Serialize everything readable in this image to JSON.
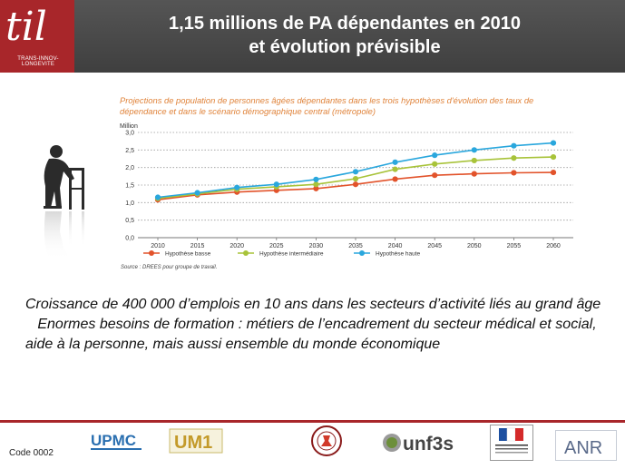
{
  "logo": {
    "text": "til",
    "subtitle": "TRANS-INNOV-LONGEVITE"
  },
  "slide": {
    "title_line1": "1,15 millions de PA dépendantes en 2010",
    "title_line2": "et évolution prévisible",
    "body_line1": "Croissance de 400 000 d’emplois en 10 ans dans les secteurs d’activité liés au grand âge",
    "body_line2": "Enormes besoins de formation : métiers de l’encadrement du secteur médical et social, aide à la personne, mais aussi ensemble du monde économique",
    "bullet_glyph": "",
    "code": "Code 0002"
  },
  "partner_logos": [
    "UPMC",
    "UM1",
    "unf3s",
    "ANR"
  ],
  "colors": {
    "brand": "#a8262a",
    "basse": "#e2532b",
    "intermediaire": "#a8c33a",
    "haute": "#2aa7dd",
    "title_orange": "#e0833a"
  },
  "chart_data": {
    "type": "line",
    "title": "Projections de population de personnes âgées dépendantes dans les trois hypothèses d'évolution des taux de dépendance et dans le scénario démographique central (métropole)",
    "ylabel": "Million",
    "source": "Source : DREES pour groupe de travail.",
    "x": [
      2010,
      2015,
      2020,
      2025,
      2030,
      2035,
      2040,
      2045,
      2050,
      2055,
      2060
    ],
    "x_tick_labels": [
      "2010",
      "2015",
      "2020",
      "2025",
      "2030",
      "2035",
      "2040",
      "2045",
      "2050",
      "2055",
      "2060"
    ],
    "ylim": [
      0,
      3.0
    ],
    "y_ticks": [
      0,
      0.5,
      1.0,
      1.5,
      2.0,
      2.5,
      3.0
    ],
    "y_tick_labels": [
      "0,0",
      "0,5",
      "1,0",
      "1,5",
      "2,0",
      "2,5",
      "3,0"
    ],
    "grid": true,
    "legend_position": "bottom",
    "series": [
      {
        "name": "Hypothèse basse",
        "color": "#e2532b",
        "values": [
          1.08,
          1.22,
          1.3,
          1.35,
          1.4,
          1.52,
          1.67,
          1.78,
          1.82,
          1.85,
          1.86
        ]
      },
      {
        "name": "Hypothèse intermédiaire",
        "color": "#a8c33a",
        "values": [
          1.12,
          1.25,
          1.38,
          1.45,
          1.52,
          1.68,
          1.95,
          2.1,
          2.2,
          2.27,
          2.3
        ]
      },
      {
        "name": "Hypothèse haute",
        "color": "#2aa7dd",
        "values": [
          1.15,
          1.28,
          1.43,
          1.52,
          1.66,
          1.88,
          2.15,
          2.35,
          2.5,
          2.62,
          2.7
        ]
      }
    ]
  }
}
